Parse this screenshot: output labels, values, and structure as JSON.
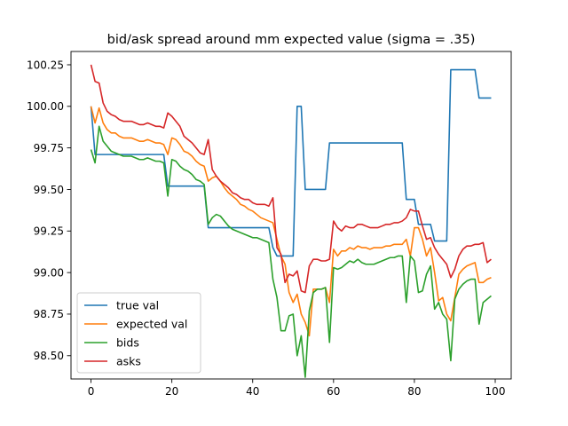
{
  "chart_data": {
    "type": "line",
    "title": "bid/ask spread around mm expected value (sigma = .35)",
    "xlabel": "",
    "ylabel": "",
    "xlim": [
      -4.95,
      103.95
    ],
    "ylim": [
      98.36,
      100.33
    ],
    "xticks": [
      0,
      20,
      40,
      60,
      80,
      100
    ],
    "yticks": [
      98.5,
      98.75,
      99.0,
      99.25,
      99.5,
      99.75,
      100.0,
      100.25
    ],
    "ytick_labels": [
      "98.50",
      "98.75",
      "99.00",
      "99.25",
      "99.50",
      "99.75",
      "100.00",
      "100.25"
    ],
    "grid": false,
    "legend_position": "lower-left",
    "x": [
      0,
      1,
      2,
      3,
      4,
      5,
      6,
      7,
      8,
      9,
      10,
      11,
      12,
      13,
      14,
      15,
      16,
      17,
      18,
      19,
      20,
      21,
      22,
      23,
      24,
      25,
      26,
      27,
      28,
      29,
      30,
      31,
      32,
      33,
      34,
      35,
      36,
      37,
      38,
      39,
      40,
      41,
      42,
      43,
      44,
      45,
      46,
      47,
      48,
      49,
      50,
      51,
      52,
      53,
      54,
      55,
      56,
      57,
      58,
      59,
      60,
      61,
      62,
      63,
      64,
      65,
      66,
      67,
      68,
      69,
      70,
      71,
      72,
      73,
      74,
      75,
      76,
      77,
      78,
      79,
      80,
      81,
      82,
      83,
      84,
      85,
      86,
      87,
      88,
      89,
      90,
      91,
      92,
      93,
      94,
      95,
      96,
      97,
      98,
      99
    ],
    "series": [
      {
        "name": "true val",
        "color": "#1f77b4",
        "values": [
          100.0,
          99.71,
          99.71,
          99.71,
          99.71,
          99.71,
          99.71,
          99.71,
          99.71,
          99.71,
          99.71,
          99.71,
          99.71,
          99.71,
          99.71,
          99.71,
          99.71,
          99.71,
          99.71,
          99.52,
          99.52,
          99.52,
          99.52,
          99.52,
          99.52,
          99.52,
          99.52,
          99.52,
          99.52,
          99.27,
          99.27,
          99.27,
          99.27,
          99.27,
          99.27,
          99.27,
          99.27,
          99.27,
          99.27,
          99.27,
          99.27,
          99.27,
          99.27,
          99.27,
          99.27,
          99.15,
          99.1,
          99.1,
          99.1,
          99.1,
          99.1,
          100.0,
          100.0,
          99.5,
          99.5,
          99.5,
          99.5,
          99.5,
          99.5,
          99.78,
          99.78,
          99.78,
          99.78,
          99.78,
          99.78,
          99.78,
          99.78,
          99.78,
          99.78,
          99.78,
          99.78,
          99.78,
          99.78,
          99.78,
          99.78,
          99.78,
          99.78,
          99.78,
          99.44,
          99.44,
          99.44,
          99.29,
          99.29,
          99.29,
          99.29,
          99.19,
          99.19,
          99.19,
          99.19,
          100.22,
          100.22,
          100.22,
          100.22,
          100.22,
          100.22,
          100.22,
          100.05,
          100.05,
          100.05,
          100.05
        ]
      },
      {
        "name": "expected val",
        "color": "#ff7f0e",
        "values": [
          100.0,
          99.9,
          99.99,
          99.9,
          99.86,
          99.84,
          99.84,
          99.82,
          99.81,
          99.81,
          99.81,
          99.8,
          99.79,
          99.79,
          99.8,
          99.79,
          99.78,
          99.78,
          99.77,
          99.71,
          99.81,
          99.8,
          99.77,
          99.73,
          99.72,
          99.7,
          99.67,
          99.65,
          99.64,
          99.55,
          99.57,
          99.58,
          99.55,
          99.51,
          99.48,
          99.46,
          99.44,
          99.41,
          99.4,
          99.38,
          99.37,
          99.35,
          99.33,
          99.32,
          99.31,
          99.3,
          99.2,
          99.1,
          99.05,
          98.88,
          98.82,
          98.87,
          98.75,
          98.7,
          98.62,
          98.9,
          98.9,
          98.9,
          98.91,
          98.82,
          99.14,
          99.1,
          99.13,
          99.13,
          99.15,
          99.14,
          99.16,
          99.15,
          99.15,
          99.14,
          99.15,
          99.15,
          99.15,
          99.16,
          99.16,
          99.17,
          99.17,
          99.17,
          99.2,
          99.1,
          99.27,
          99.27,
          99.2,
          99.1,
          99.15,
          99.0,
          98.83,
          98.85,
          98.75,
          98.71,
          98.85,
          98.99,
          99.02,
          99.04,
          99.05,
          99.06,
          98.94,
          98.94,
          98.96,
          98.97
        ]
      },
      {
        "name": "bids",
        "color": "#2ca02c",
        "values": [
          99.74,
          99.66,
          99.88,
          99.79,
          99.76,
          99.73,
          99.72,
          99.71,
          99.7,
          99.7,
          99.7,
          99.69,
          99.68,
          99.68,
          99.69,
          99.68,
          99.67,
          99.67,
          99.66,
          99.46,
          99.68,
          99.67,
          99.64,
          99.62,
          99.61,
          99.59,
          99.56,
          99.55,
          99.53,
          99.29,
          99.33,
          99.35,
          99.34,
          99.31,
          99.28,
          99.26,
          99.25,
          99.24,
          99.23,
          99.22,
          99.21,
          99.21,
          99.2,
          99.19,
          99.18,
          98.96,
          98.85,
          98.65,
          98.65,
          98.74,
          98.75,
          98.5,
          98.62,
          98.37,
          98.77,
          98.88,
          98.9,
          98.9,
          98.91,
          98.58,
          99.03,
          99.02,
          99.03,
          99.05,
          99.07,
          99.06,
          99.08,
          99.06,
          99.05,
          99.05,
          99.05,
          99.06,
          99.07,
          99.08,
          99.09,
          99.09,
          99.1,
          99.1,
          98.82,
          99.1,
          99.07,
          98.88,
          98.89,
          98.99,
          99.04,
          98.78,
          98.82,
          98.75,
          98.72,
          98.47,
          98.84,
          98.9,
          98.93,
          98.95,
          98.96,
          98.96,
          98.69,
          98.82,
          98.84,
          98.86
        ]
      },
      {
        "name": "asks",
        "color": "#d62728",
        "values": [
          100.25,
          100.15,
          100.14,
          100.02,
          99.97,
          99.95,
          99.94,
          99.92,
          99.91,
          99.91,
          99.91,
          99.9,
          99.89,
          99.89,
          99.9,
          99.89,
          99.88,
          99.88,
          99.87,
          99.96,
          99.94,
          99.91,
          99.88,
          99.82,
          99.8,
          99.78,
          99.75,
          99.72,
          99.71,
          99.8,
          99.62,
          99.58,
          99.55,
          99.53,
          99.51,
          99.48,
          99.47,
          99.45,
          99.44,
          99.44,
          99.42,
          99.41,
          99.41,
          99.41,
          99.4,
          99.45,
          99.15,
          99.11,
          98.94,
          98.99,
          98.98,
          99.01,
          98.89,
          98.88,
          99.04,
          99.08,
          99.08,
          99.07,
          99.07,
          99.08,
          99.31,
          99.27,
          99.25,
          99.28,
          99.27,
          99.27,
          99.29,
          99.29,
          99.28,
          99.27,
          99.27,
          99.27,
          99.28,
          99.29,
          99.29,
          99.3,
          99.3,
          99.31,
          99.33,
          99.38,
          99.37,
          99.37,
          99.28,
          99.2,
          99.21,
          99.15,
          99.11,
          99.08,
          99.05,
          98.97,
          99.02,
          99.1,
          99.14,
          99.16,
          99.16,
          99.17,
          99.17,
          99.18,
          99.06,
          99.08
        ]
      }
    ]
  }
}
